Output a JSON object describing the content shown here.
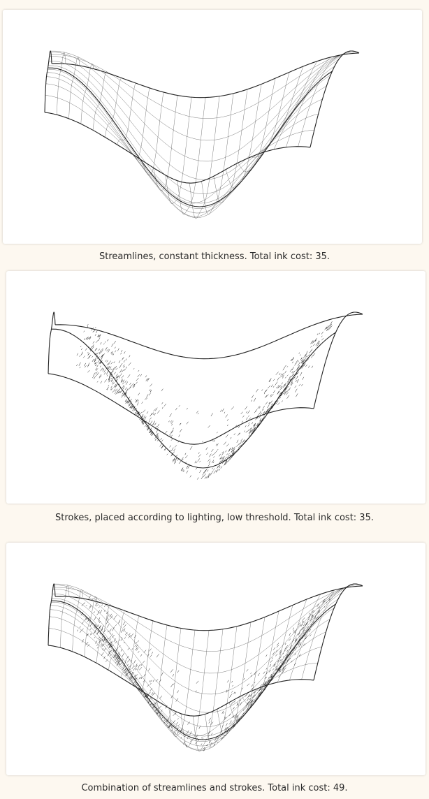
{
  "figures": [
    {
      "caption": "Streamlines, constant thickness. Total ink cost: 35.",
      "mode": "streamlines"
    },
    {
      "caption": "Strokes, placed according to lighting, low threshold. Total ink cost: 35.",
      "mode": "strokes"
    },
    {
      "caption": "Combination of streamlines and strokes. Total ink cost: 49.",
      "mode": "combined"
    }
  ],
  "colors": {
    "page_background": "#fdf8f0",
    "panel_background": "#ffffff",
    "ink": "#222222"
  }
}
